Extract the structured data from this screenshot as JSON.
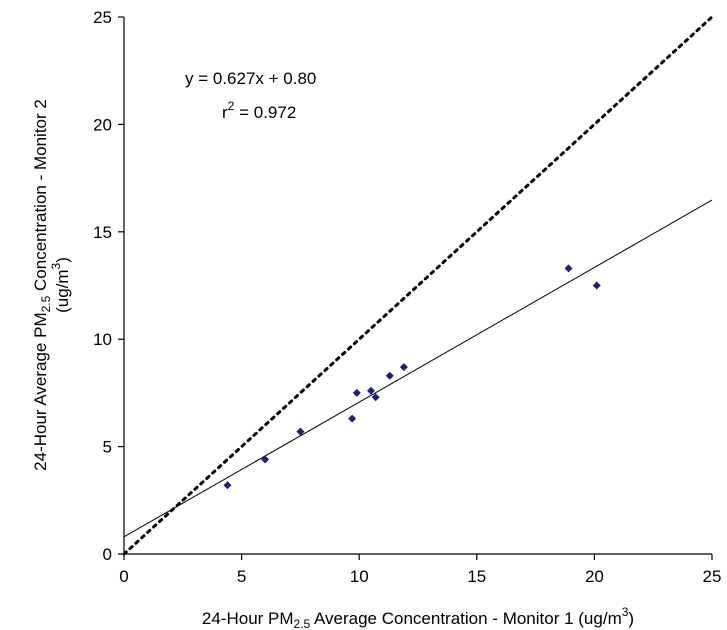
{
  "chart_data": {
    "type": "scatter",
    "xlabel": {
      "prefix": "24-Hour PM",
      "sub": "2.5",
      "suffix": " Average Concentration - Monitor 1 (ug/m",
      "sup": "3",
      "end": ")"
    },
    "ylabel": {
      "line1_prefix": "24-Hour Average PM",
      "line1_sub": "2.5",
      "line1_suffix": " Concentration - Monitor 2",
      "line2_prefix": "(ug/m",
      "line2_sup": "3",
      "line2_end": ")"
    },
    "xlim": [
      0,
      25
    ],
    "ylim": [
      0,
      25
    ],
    "x_ticks": [
      0,
      5,
      10,
      15,
      20,
      25
    ],
    "y_ticks": [
      0,
      5,
      10,
      15,
      20,
      25
    ],
    "grid": false,
    "points": [
      {
        "x": 4.4,
        "y": 3.2
      },
      {
        "x": 6.0,
        "y": 4.4
      },
      {
        "x": 7.5,
        "y": 5.7
      },
      {
        "x": 9.7,
        "y": 6.3
      },
      {
        "x": 9.9,
        "y": 7.5
      },
      {
        "x": 10.5,
        "y": 7.6
      },
      {
        "x": 10.7,
        "y": 7.3
      },
      {
        "x": 11.3,
        "y": 8.3
      },
      {
        "x": 11.9,
        "y": 8.7
      },
      {
        "x": 18.9,
        "y": 13.3
      },
      {
        "x": 20.1,
        "y": 12.5
      }
    ],
    "marker_color": "#1f1f7a",
    "regression": {
      "slope": 0.627,
      "intercept": 0.8
    },
    "one_to_one_line": {
      "slope": 1,
      "intercept": 0,
      "style": "dotted"
    },
    "annotation": {
      "equation": "y = 0.627x + 0.80",
      "r2_prefix": "r",
      "r2_sup": "2",
      "r2_suffix": " = 0.972"
    }
  }
}
